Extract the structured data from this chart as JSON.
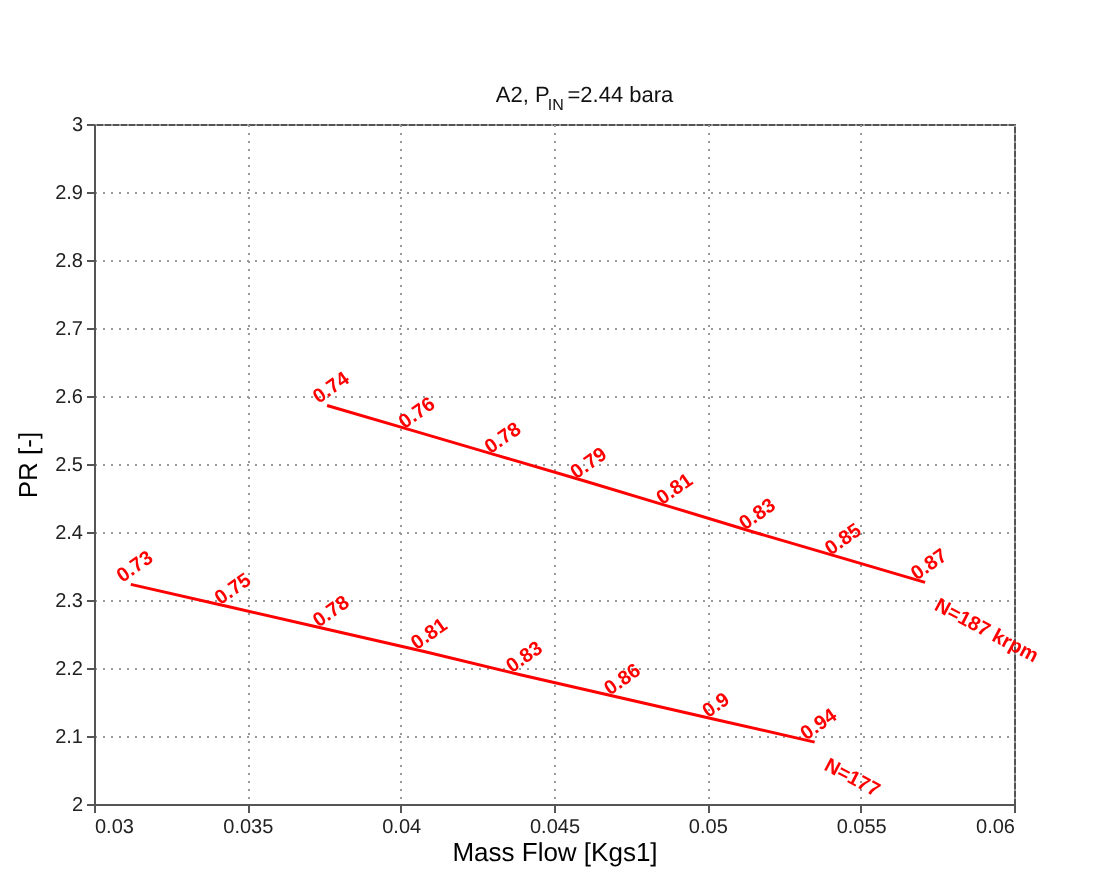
{
  "chart_data": {
    "type": "line",
    "title": "A2, P$_{IN}$=2.44 bara",
    "xlabel": "Mass Flow [Kgs1]",
    "ylabel": "PR [-]",
    "xlim": [
      0.03,
      0.06
    ],
    "xticks": [
      0.03,
      0.035,
      0.04,
      0.045,
      0.05,
      0.055,
      0.06
    ],
    "ylim": [
      2,
      3
    ],
    "yticks": [
      2,
      2.1,
      2.2,
      2.3,
      2.4,
      2.5,
      2.6,
      2.7,
      2.8,
      2.9,
      3
    ],
    "grid": true,
    "marker": "none",
    "line_style": "solid",
    "series": [
      {
        "name": "N=187 krpm",
        "color": "#ff0000",
        "x": [
          0.0376,
          0.0404,
          0.0432,
          0.046,
          0.0488,
          0.0515,
          0.0543,
          0.0571
        ],
        "values": [
          2.586,
          2.549,
          2.512,
          2.475,
          2.437,
          2.4,
          2.363,
          2.326
        ]
      },
      {
        "name": "N=177",
        "color": "#ff0000",
        "x": [
          0.0312,
          0.0344,
          0.0376,
          0.0408,
          0.0439,
          0.0471,
          0.0503,
          0.0535
        ],
        "values": [
          2.323,
          2.29,
          2.257,
          2.224,
          2.19,
          2.157,
          2.124,
          2.091
        ]
      }
    ],
    "annotations": [
      {
        "text": "0.74",
        "x": 0.0376,
        "y": 2.586
      },
      {
        "text": "0.76",
        "x": 0.0404,
        "y": 2.549
      },
      {
        "text": "0.78",
        "x": 0.0432,
        "y": 2.512
      },
      {
        "text": "0.79",
        "x": 0.046,
        "y": 2.475
      },
      {
        "text": "0.81",
        "x": 0.0488,
        "y": 2.437
      },
      {
        "text": "0.83",
        "x": 0.0515,
        "y": 2.4
      },
      {
        "text": "0.85",
        "x": 0.0543,
        "y": 2.363
      },
      {
        "text": "0.87",
        "x": 0.0571,
        "y": 2.326
      },
      {
        "text": "0.73",
        "x": 0.0312,
        "y": 2.323
      },
      {
        "text": "0.75",
        "x": 0.0344,
        "y": 2.29
      },
      {
        "text": "0.78",
        "x": 0.0376,
        "y": 2.257
      },
      {
        "text": "0.81",
        "x": 0.0408,
        "y": 2.224
      },
      {
        "text": "0.83",
        "x": 0.0439,
        "y": 2.19
      },
      {
        "text": "0.86",
        "x": 0.0471,
        "y": 2.157
      },
      {
        "text": "0.9",
        "x": 0.0503,
        "y": 2.124
      },
      {
        "text": "0.94",
        "x": 0.0535,
        "y": 2.091
      }
    ]
  }
}
